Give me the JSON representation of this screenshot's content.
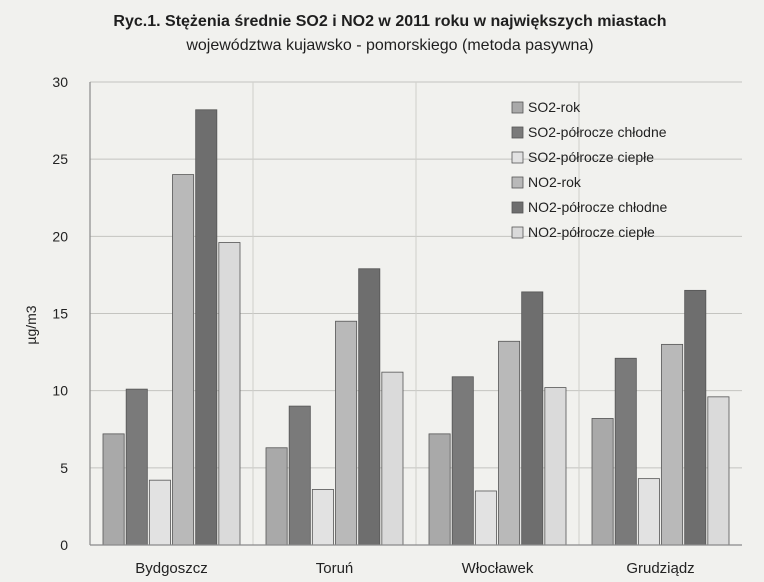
{
  "chart_data": {
    "type": "bar",
    "title_prefix": "Ryc.1.",
    "title_line1": "Stężenia średnie SO2 i NO2 w 2011 roku w największych miastach",
    "title_line2": "województwa kujawsko - pomorskiego (metoda pasywna)",
    "ylabel": "µg/m3",
    "xlabel": "",
    "ylim": [
      0,
      30
    ],
    "yticks": [
      0,
      5,
      10,
      15,
      20,
      25,
      30
    ],
    "grid": true,
    "legend_position": "top-right",
    "categories": [
      "Bydgoszcz",
      "Toruń",
      "Włocławek",
      "Grudziądz"
    ],
    "series": [
      {
        "name": "SO2-rok",
        "color": "#a9a9a9",
        "values": [
          7.2,
          6.3,
          7.2,
          8.2
        ]
      },
      {
        "name": "SO2-półrocze chłodne",
        "color": "#7a7a7a",
        "values": [
          10.1,
          9.0,
          10.9,
          12.1
        ]
      },
      {
        "name": "SO2-półrocze ciepłe",
        "color": "#e2e2e2",
        "values": [
          4.2,
          3.6,
          3.5,
          4.3
        ]
      },
      {
        "name": "NO2-rok",
        "color": "#b9b9b9",
        "values": [
          24.0,
          14.5,
          13.2,
          13.0
        ]
      },
      {
        "name": "NO2-półrocze chłodne",
        "color": "#6e6e6e",
        "values": [
          28.2,
          17.9,
          16.4,
          16.5
        ]
      },
      {
        "name": "NO2-półrocze ciepłe",
        "color": "#dadada",
        "values": [
          19.6,
          11.2,
          10.2,
          9.6
        ]
      }
    ]
  }
}
